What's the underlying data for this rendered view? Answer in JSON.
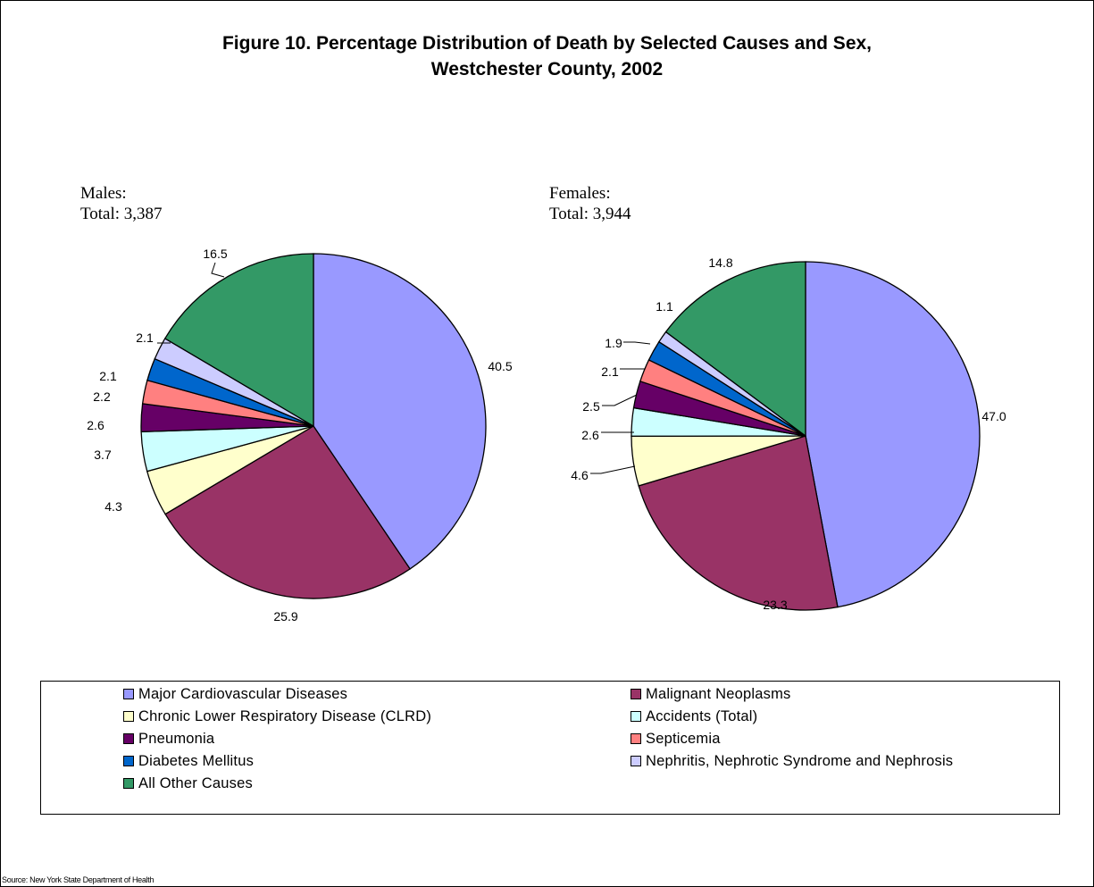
{
  "chart_data": {
    "type": "pie",
    "title": "Figure 10. Percentage Distribution of Death by Selected Causes and Sex,",
    "subtitle": "Westchester County, 2002",
    "categories": [
      "Major Cardiovascular Diseases",
      "Malignant Neoplasms",
      "Chronic Lower Respiratory Disease (CLRD)",
      "Accidents (Total)",
      "Pneumonia",
      "Septicemia",
      "Diabetes Mellitus",
      "Nephritis, Nephrotic Syndrome and Nephrosis",
      "All Other Causes"
    ],
    "colors": [
      "#9999ff",
      "#993366",
      "#ffffcc",
      "#ccffff",
      "#660066",
      "#ff8080",
      "#0066cc",
      "#ccccff",
      "#339966"
    ],
    "pies": [
      {
        "name": "Males",
        "caption_line1": "Males:",
        "caption_line2": "Total: 3,387",
        "values": [
          40.5,
          25.9,
          4.3,
          3.7,
          2.6,
          2.2,
          2.1,
          2.1,
          16.5
        ],
        "labels": [
          "40.5",
          "25.9",
          "4.3",
          "3.7",
          "2.6",
          "2.2",
          "2.1",
          "2.1",
          "16.5"
        ]
      },
      {
        "name": "Females",
        "caption_line1": "Females:",
        "caption_line2": "Total: 3,944",
        "values": [
          47.0,
          23.3,
          4.6,
          2.6,
          2.5,
          2.1,
          1.9,
          1.1,
          14.8
        ],
        "labels": [
          "47.0",
          "23.3",
          "4.6",
          "2.6",
          "2.5",
          "2.1",
          "1.9",
          "1.1",
          "14.8"
        ]
      }
    ],
    "legend_position": "bottom",
    "source": "Source: New York State Department of Health"
  }
}
